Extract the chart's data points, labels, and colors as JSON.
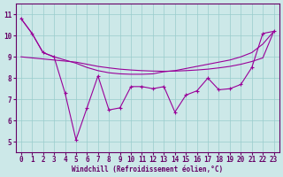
{
  "xlabel": "Windchill (Refroidissement éolien,°C)",
  "bg_color": "#cce8e8",
  "line_color": "#990099",
  "grid_color": "#99cccc",
  "xlim": [
    -0.5,
    23.5
  ],
  "ylim": [
    4.5,
    11.5
  ],
  "yticks": [
    5,
    6,
    7,
    8,
    9,
    10,
    11
  ],
  "xticks": [
    0,
    1,
    2,
    3,
    4,
    5,
    6,
    7,
    8,
    9,
    10,
    11,
    12,
    13,
    14,
    15,
    16,
    17,
    18,
    19,
    20,
    21,
    22,
    23
  ],
  "tick_fontsize": 5.5,
  "xlabel_fontsize": 5.5,
  "line1_x": [
    0,
    1,
    2,
    3,
    4,
    5,
    6,
    7,
    8,
    9,
    10,
    11,
    12,
    13,
    14,
    15,
    16,
    17,
    18,
    19,
    20,
    21,
    22,
    23
  ],
  "line1_y": [
    10.8,
    10.1,
    9.2,
    9.0,
    7.3,
    5.1,
    6.6,
    8.1,
    6.5,
    6.6,
    7.6,
    7.6,
    7.5,
    7.6,
    6.4,
    7.2,
    7.4,
    8.0,
    7.45,
    7.5,
    7.7,
    8.5,
    10.1,
    10.2
  ],
  "line2_x": [
    0,
    1,
    2,
    3,
    4,
    5,
    6,
    7,
    8,
    9,
    10,
    11,
    12,
    13,
    14,
    15,
    16,
    17,
    18,
    19,
    20,
    21,
    22,
    23
  ],
  "line2_y": [
    10.8,
    10.1,
    9.2,
    9.0,
    8.85,
    8.7,
    8.5,
    8.35,
    8.25,
    8.2,
    8.18,
    8.18,
    8.2,
    8.3,
    8.35,
    8.45,
    8.55,
    8.65,
    8.75,
    8.85,
    9.0,
    9.2,
    9.6,
    10.2
  ],
  "line3_x": [
    0,
    1,
    2,
    3,
    4,
    5,
    6,
    7,
    8,
    9,
    10,
    11,
    12,
    13,
    14,
    15,
    16,
    17,
    18,
    19,
    20,
    21,
    22,
    23
  ],
  "line3_y": [
    9.0,
    8.95,
    8.9,
    8.85,
    8.8,
    8.75,
    8.65,
    8.55,
    8.48,
    8.42,
    8.38,
    8.35,
    8.33,
    8.32,
    8.33,
    8.35,
    8.38,
    8.42,
    8.48,
    8.55,
    8.65,
    8.78,
    8.95,
    10.2
  ]
}
